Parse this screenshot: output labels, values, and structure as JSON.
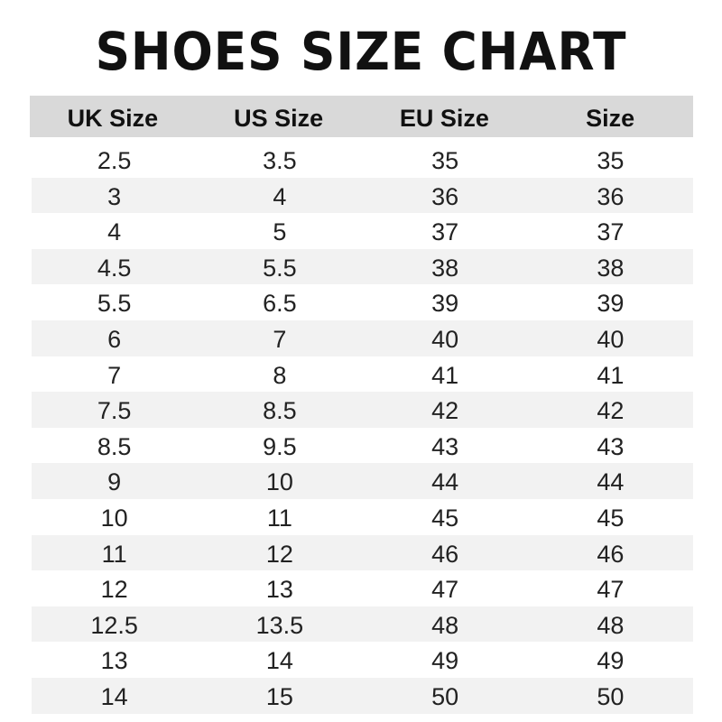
{
  "title": "SHOES SIZE CHART",
  "columns": [
    "UK Size",
    "US Size",
    "EU Size",
    "Size"
  ],
  "rows": [
    [
      "2.5",
      "3.5",
      "35",
      "35"
    ],
    [
      "3",
      "4",
      "36",
      "36"
    ],
    [
      "4",
      "5",
      "37",
      "37"
    ],
    [
      "4.5",
      "5.5",
      "38",
      "38"
    ],
    [
      "5.5",
      "6.5",
      "39",
      "39"
    ],
    [
      "6",
      "7",
      "40",
      "40"
    ],
    [
      "7",
      "8",
      "41",
      "41"
    ],
    [
      "7.5",
      "8.5",
      "42",
      "42"
    ],
    [
      "8.5",
      "9.5",
      "43",
      "43"
    ],
    [
      "9",
      "10",
      "44",
      "44"
    ],
    [
      "10",
      "11",
      "45",
      "45"
    ],
    [
      "11",
      "12",
      "46",
      "46"
    ],
    [
      "12",
      "13",
      "47",
      "47"
    ],
    [
      "12.5",
      "13.5",
      "48",
      "48"
    ],
    [
      "13",
      "14",
      "49",
      "49"
    ],
    [
      "14",
      "15",
      "50",
      "50"
    ]
  ]
}
